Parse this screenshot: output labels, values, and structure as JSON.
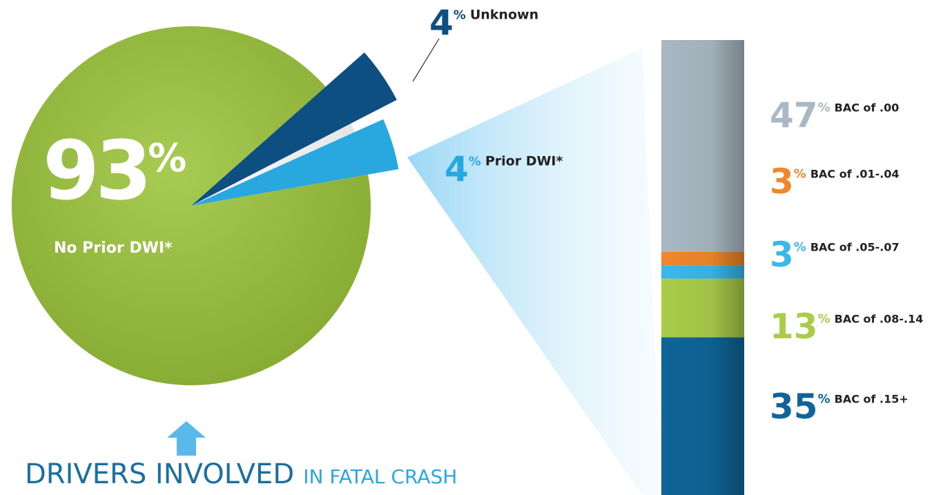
{
  "chart_data": [
    {
      "type": "pie",
      "title": "DRIVERS INVOLVED",
      "subtitle": "IN FATAL CRASH",
      "unit": "%",
      "categories": [
        "No Prior DWI*",
        "Prior DWI*",
        "Unknown"
      ],
      "values": [
        93,
        4,
        4
      ],
      "colors": [
        "#9cc43c",
        "#29a8e0",
        "#0d4f80"
      ]
    },
    {
      "type": "stacked-bar",
      "unit": "%",
      "categories": [
        "BAC of .00",
        "BAC of .01-.04",
        "BAC of .05-.07",
        "BAC of .08-.14",
        "BAC of .15+"
      ],
      "values": [
        47,
        3,
        3,
        13,
        35
      ],
      "colors": [
        "#a9b8c2",
        "#f0872a",
        "#3bb8ea",
        "#a9cc4a",
        "#0f6598"
      ]
    }
  ]
}
